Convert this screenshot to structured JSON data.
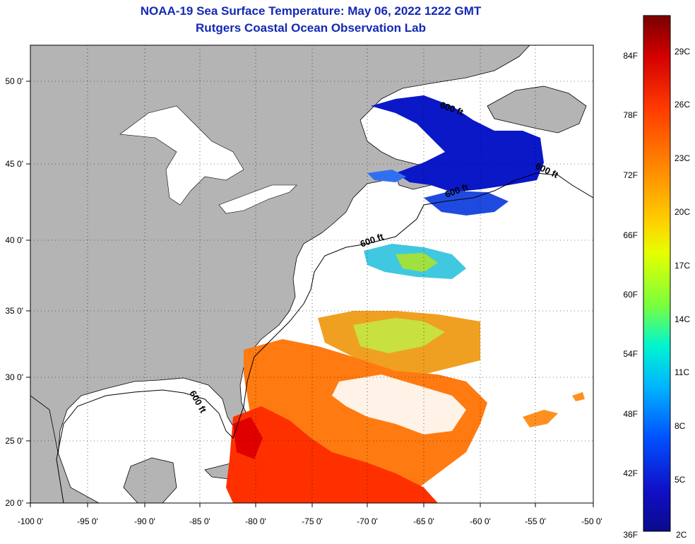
{
  "header": {
    "title": "NOAA-19 Sea Surface Temperature:  May 06, 2022 1222 GMT",
    "subtitle": "Rutgers Coastal Ocean Observation Lab"
  },
  "map": {
    "lon_labels": [
      "-100 0'",
      "-95 0'",
      "-90 0'",
      "-85 0'",
      "-80 0'",
      "-75 0'",
      "-70 0'",
      "-65 0'",
      "-60 0'",
      "-55 0'",
      "-50 0'"
    ],
    "lat_labels": [
      "50 0'",
      "45 0'",
      "40 0'",
      "35 0'",
      "30 0'",
      "25 0'",
      "20 0'"
    ],
    "contour_label": "600 ft",
    "colors": {
      "land": "#b4b4b4",
      "ocean_no_data": "#ffffff",
      "frame": "#000000"
    }
  },
  "colorbar": {
    "fahrenheit": [
      "84F",
      "78F",
      "72F",
      "66F",
      "60F",
      "54F",
      "48F",
      "42F",
      "36F"
    ],
    "celsius": [
      "29C",
      "26C",
      "23C",
      "20C",
      "17C",
      "14C",
      "11C",
      "8C",
      "5C",
      "2C"
    ],
    "gradient": [
      "#7a0000",
      "#d40000",
      "#ff3a00",
      "#ff8c00",
      "#ffd000",
      "#e6ff00",
      "#7cff3a",
      "#00f5d0",
      "#00b4ff",
      "#0050ff",
      "#1010c8",
      "#0a0a8c"
    ]
  }
}
